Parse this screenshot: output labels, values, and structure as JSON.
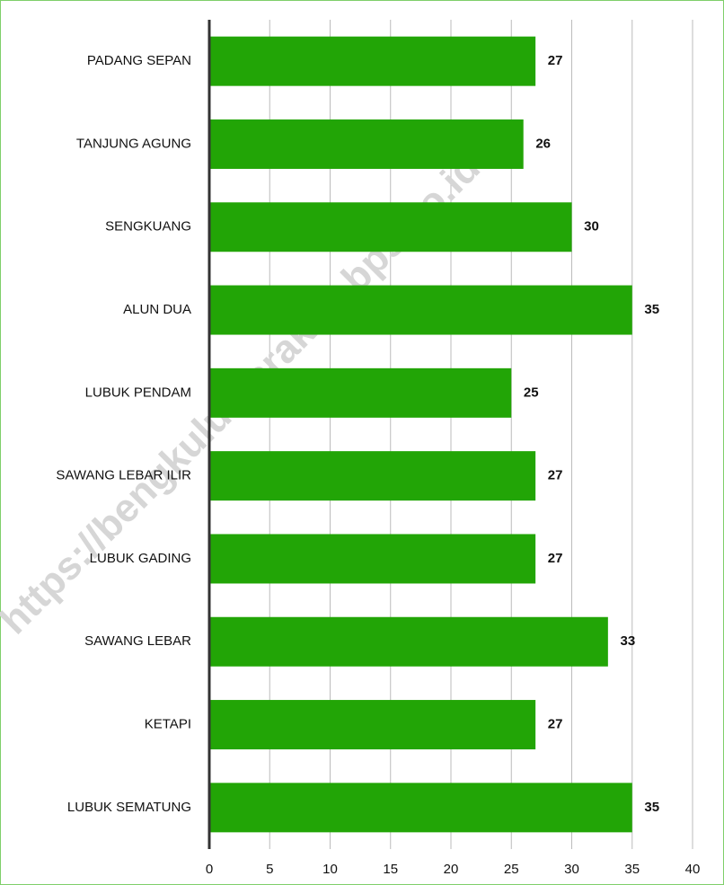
{
  "chart_data": {
    "type": "bar",
    "orientation": "horizontal",
    "categories": [
      "PADANG SEPAN",
      "TANJUNG AGUNG",
      "SENGKUANG",
      "ALUN DUA",
      "LUBUK PENDAM",
      "SAWANG LEBAR ILIR",
      "LUBUK GADING",
      "SAWANG LEBAR",
      "KETAPI",
      "LUBUK SEMATUNG"
    ],
    "values": [
      27,
      26,
      30,
      35,
      25,
      27,
      27,
      33,
      27,
      35
    ],
    "color": "#22a506",
    "xlim": [
      0,
      40
    ],
    "xticks": [
      0,
      5,
      10,
      15,
      20,
      25,
      30,
      35,
      40
    ],
    "grid": true
  },
  "watermark": "https://bengkuluutarakab.bps.go.id"
}
